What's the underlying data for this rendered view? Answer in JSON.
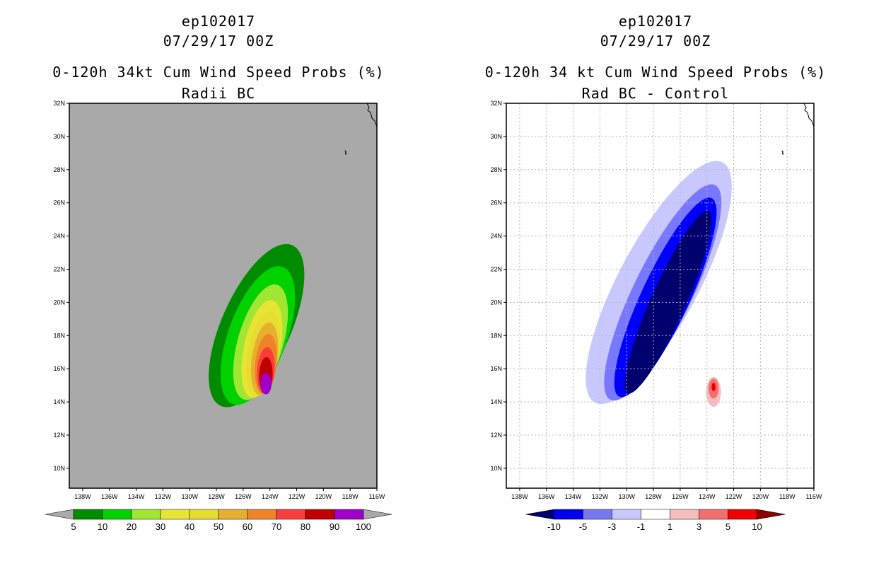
{
  "chart_data": [
    {
      "type": "contour-map",
      "title": [
        "ep102017",
        "07/29/17 00Z",
        "0-120h 34kt Cum Wind Speed Probs (%)",
        "Radii BC"
      ],
      "xlim": [
        -139,
        -116
      ],
      "ylim": [
        8.8,
        32
      ],
      "x_ticks": [
        {
          "value": -138,
          "label": "138W"
        },
        {
          "value": -136,
          "label": "136W"
        },
        {
          "value": -134,
          "label": "134W"
        },
        {
          "value": -132,
          "label": "132W"
        },
        {
          "value": -130,
          "label": "130W"
        },
        {
          "value": -128,
          "label": "128W"
        },
        {
          "value": -126,
          "label": "126W"
        },
        {
          "value": -124,
          "label": "124W"
        },
        {
          "value": -122,
          "label": "122W"
        },
        {
          "value": -120,
          "label": "120W"
        },
        {
          "value": -118,
          "label": "118W"
        },
        {
          "value": -116,
          "label": "116W"
        }
      ],
      "y_ticks": [
        {
          "value": 10,
          "label": "10N"
        },
        {
          "value": 12,
          "label": "12N"
        },
        {
          "value": 14,
          "label": "14N"
        },
        {
          "value": 16,
          "label": "16N"
        },
        {
          "value": 18,
          "label": "18N"
        },
        {
          "value": 20,
          "label": "20N"
        },
        {
          "value": 22,
          "label": "22N"
        },
        {
          "value": 24,
          "label": "24N"
        },
        {
          "value": 26,
          "label": "26N"
        },
        {
          "value": 28,
          "label": "28N"
        },
        {
          "value": 30,
          "label": "30N"
        },
        {
          "value": 32,
          "label": "32N"
        }
      ],
      "grid": false,
      "background_color": "#a9a9a9",
      "contours": [
        {
          "level": 5,
          "color": "#008c00",
          "center": [
            -125.0,
            18.6
          ],
          "semi_axes": [
            2.6,
            5.3
          ],
          "rotation_deg": 24
        },
        {
          "level": 10,
          "color": "#00d200",
          "center": [
            -124.9,
            18.0
          ],
          "semi_axes": [
            2.2,
            4.4
          ],
          "rotation_deg": 20
        },
        {
          "level": 20,
          "color": "#a0e632",
          "center": [
            -124.7,
            17.6
          ],
          "semi_axes": [
            1.7,
            3.6
          ],
          "rotation_deg": 16
        },
        {
          "level": 30,
          "color": "#e6e632",
          "center": [
            -124.6,
            17.2
          ],
          "semi_axes": [
            1.35,
            3.0
          ],
          "rotation_deg": 12
        },
        {
          "level": 40,
          "color": "#e6dc32",
          "center": [
            -124.5,
            16.9
          ],
          "semi_axes": [
            1.15,
            2.6
          ],
          "rotation_deg": 10
        },
        {
          "level": 50,
          "color": "#e6af2d",
          "center": [
            -124.4,
            16.6
          ],
          "semi_axes": [
            0.95,
            2.2
          ],
          "rotation_deg": 8
        },
        {
          "level": 60,
          "color": "#f08228",
          "center": [
            -124.3,
            16.3
          ],
          "semi_axes": [
            0.8,
            1.8
          ],
          "rotation_deg": 6
        },
        {
          "level": 70,
          "color": "#fa3c3c",
          "center": [
            -124.3,
            15.9
          ],
          "semi_axes": [
            0.65,
            1.4
          ],
          "rotation_deg": 4
        },
        {
          "level": 80,
          "color": "#c00000",
          "center": [
            -124.3,
            15.6
          ],
          "semi_axes": [
            0.5,
            1.1
          ],
          "rotation_deg": 2
        },
        {
          "level": 100,
          "color": "#a000c8",
          "center": [
            -124.3,
            15.1
          ],
          "semi_axes": [
            0.42,
            0.65
          ],
          "rotation_deg": 0
        }
      ],
      "colorbar": {
        "labels": [
          "5",
          "10",
          "20",
          "30",
          "40",
          "50",
          "60",
          "70",
          "80",
          "90",
          "100"
        ],
        "colors": [
          "#008c00",
          "#00d200",
          "#a0e632",
          "#e6e632",
          "#e6dc32",
          "#e6af2d",
          "#f08228",
          "#fa3c3c",
          "#c00000",
          "#a000c8"
        ],
        "under_color": "#a9a9a9",
        "over_color": "#a9a9a9"
      }
    },
    {
      "type": "contour-map",
      "title": [
        "ep102017",
        "07/29/17 00Z",
        "0-120h 34 kt Cum Wind Speed Probs (%)",
        "Rad BC - Control"
      ],
      "xlim": [
        -139,
        -116
      ],
      "ylim": [
        8.8,
        32
      ],
      "x_ticks": [
        {
          "value": -138,
          "label": "138W"
        },
        {
          "value": -136,
          "label": "136W"
        },
        {
          "value": -134,
          "label": "134W"
        },
        {
          "value": -132,
          "label": "132W"
        },
        {
          "value": -130,
          "label": "130W"
        },
        {
          "value": -128,
          "label": "128W"
        },
        {
          "value": -126,
          "label": "126W"
        },
        {
          "value": -124,
          "label": "124W"
        },
        {
          "value": -122,
          "label": "122W"
        },
        {
          "value": -120,
          "label": "120W"
        },
        {
          "value": -118,
          "label": "118W"
        },
        {
          "value": -116,
          "label": "116W"
        }
      ],
      "y_ticks": [
        {
          "value": 10,
          "label": "10N"
        },
        {
          "value": 12,
          "label": "12N"
        },
        {
          "value": 14,
          "label": "14N"
        },
        {
          "value": 16,
          "label": "16N"
        },
        {
          "value": 18,
          "label": "18N"
        },
        {
          "value": 20,
          "label": "20N"
        },
        {
          "value": 22,
          "label": "22N"
        },
        {
          "value": 24,
          "label": "24N"
        },
        {
          "value": 26,
          "label": "26N"
        },
        {
          "value": 28,
          "label": "28N"
        },
        {
          "value": 30,
          "label": "30N"
        },
        {
          "value": 32,
          "label": "32N"
        }
      ],
      "grid": true,
      "background_color": "#ffffff",
      "contours": [
        {
          "level": -1,
          "color": "#c8c8ff",
          "center": [
            -127.6,
            21.2
          ],
          "semi_axes": [
            3.0,
            8.2
          ],
          "rotation_deg": 28
        },
        {
          "level": -3,
          "color": "#7878ff",
          "center": [
            -127.3,
            20.6
          ],
          "semi_axes": [
            2.2,
            7.2
          ],
          "rotation_deg": 26
        },
        {
          "level": -5,
          "color": "#0000ff",
          "center": [
            -127.1,
            20.3
          ],
          "semi_axes": [
            1.8,
            6.6
          ],
          "rotation_deg": 25
        },
        {
          "level": -10,
          "color": "#00006e",
          "center": [
            -126.9,
            20.0
          ],
          "semi_axes": [
            1.3,
            6.0
          ],
          "rotation_deg": 24
        },
        {
          "level": 1,
          "color": "#ffffff",
          "center": [
            -125.3,
            14.9
          ],
          "semi_axes": [
            1.05,
            1.05
          ],
          "rotation_deg": 0
        },
        {
          "level": 3,
          "color": "#f5bebe",
          "center": [
            -123.5,
            14.6
          ],
          "semi_axes": [
            0.55,
            0.9
          ],
          "rotation_deg": 0
        },
        {
          "level": 5,
          "color": "#f56e6e",
          "center": [
            -123.5,
            14.8
          ],
          "semi_axes": [
            0.38,
            0.6
          ],
          "rotation_deg": 0
        },
        {
          "level": 10,
          "color": "#e60000",
          "center": [
            -123.5,
            14.9
          ],
          "semi_axes": [
            0.15,
            0.25
          ],
          "rotation_deg": 0
        }
      ],
      "colorbar": {
        "labels": [
          "-10",
          "-5",
          "-3",
          "-1",
          "1",
          "3",
          "5",
          "10"
        ],
        "colors": [
          "#0000f0",
          "#7878f0",
          "#c8c8fa",
          "#ffffff",
          "#f5bebe",
          "#f56e6e",
          "#f00000"
        ],
        "under_color": "#00006e",
        "over_color": "#8c0000"
      }
    }
  ]
}
